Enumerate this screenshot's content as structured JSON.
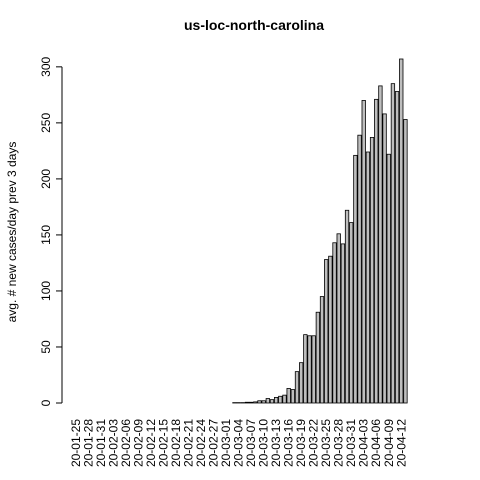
{
  "chart_data": {
    "type": "bar",
    "title": "us-loc-north-carolina",
    "y_label": "avg. # new cases/day prev  3  days",
    "color": "#bebebe",
    "categories": [
      "20-01-25",
      null,
      null,
      "20-01-28",
      null,
      null,
      "20-01-31",
      null,
      null,
      "20-02-03",
      null,
      null,
      "20-02-06",
      null,
      null,
      "20-02-09",
      null,
      null,
      "20-02-12",
      null,
      null,
      "20-02-15",
      null,
      null,
      "20-02-18",
      null,
      null,
      "20-02-21",
      null,
      null,
      "20-02-24",
      null,
      null,
      "20-02-27",
      null,
      null,
      "20-03-01",
      null,
      null,
      "20-03-04",
      null,
      null,
      "20-03-07",
      null,
      null,
      "20-03-10",
      null,
      null,
      "20-03-13",
      null,
      null,
      "20-03-16",
      null,
      null,
      "20-03-19",
      null,
      null,
      "20-03-22",
      null,
      null,
      "20-03-25",
      null,
      null,
      "20-03-28",
      null,
      null,
      "20-03-31",
      null,
      null,
      "20-04-03",
      null,
      null,
      "20-04-06",
      null,
      null,
      "20-04-09",
      null,
      null,
      "20-04-12",
      null
    ],
    "values": [
      0,
      0,
      0,
      0,
      0,
      0,
      0,
      0,
      0,
      0,
      0,
      0,
      0,
      0,
      0,
      0,
      0,
      0,
      0,
      0,
      0,
      0,
      0,
      0,
      0,
      0,
      0,
      0,
      0,
      0,
      0,
      0,
      0,
      0,
      0,
      0,
      0,
      0,
      0.33,
      0.33,
      0.33,
      0.67,
      0.67,
      1,
      2,
      2,
      4,
      3,
      5,
      6,
      7,
      13,
      12,
      28,
      36,
      61,
      60,
      60,
      81,
      95,
      128,
      131,
      143,
      151,
      142,
      172,
      161,
      221,
      239,
      270,
      224,
      237,
      271,
      283,
      258,
      222,
      285,
      278,
      307,
      253
    ],
    "ylim": [
      0,
      307
    ],
    "yticks": [
      0,
      50,
      100,
      150,
      200,
      250,
      300
    ]
  }
}
